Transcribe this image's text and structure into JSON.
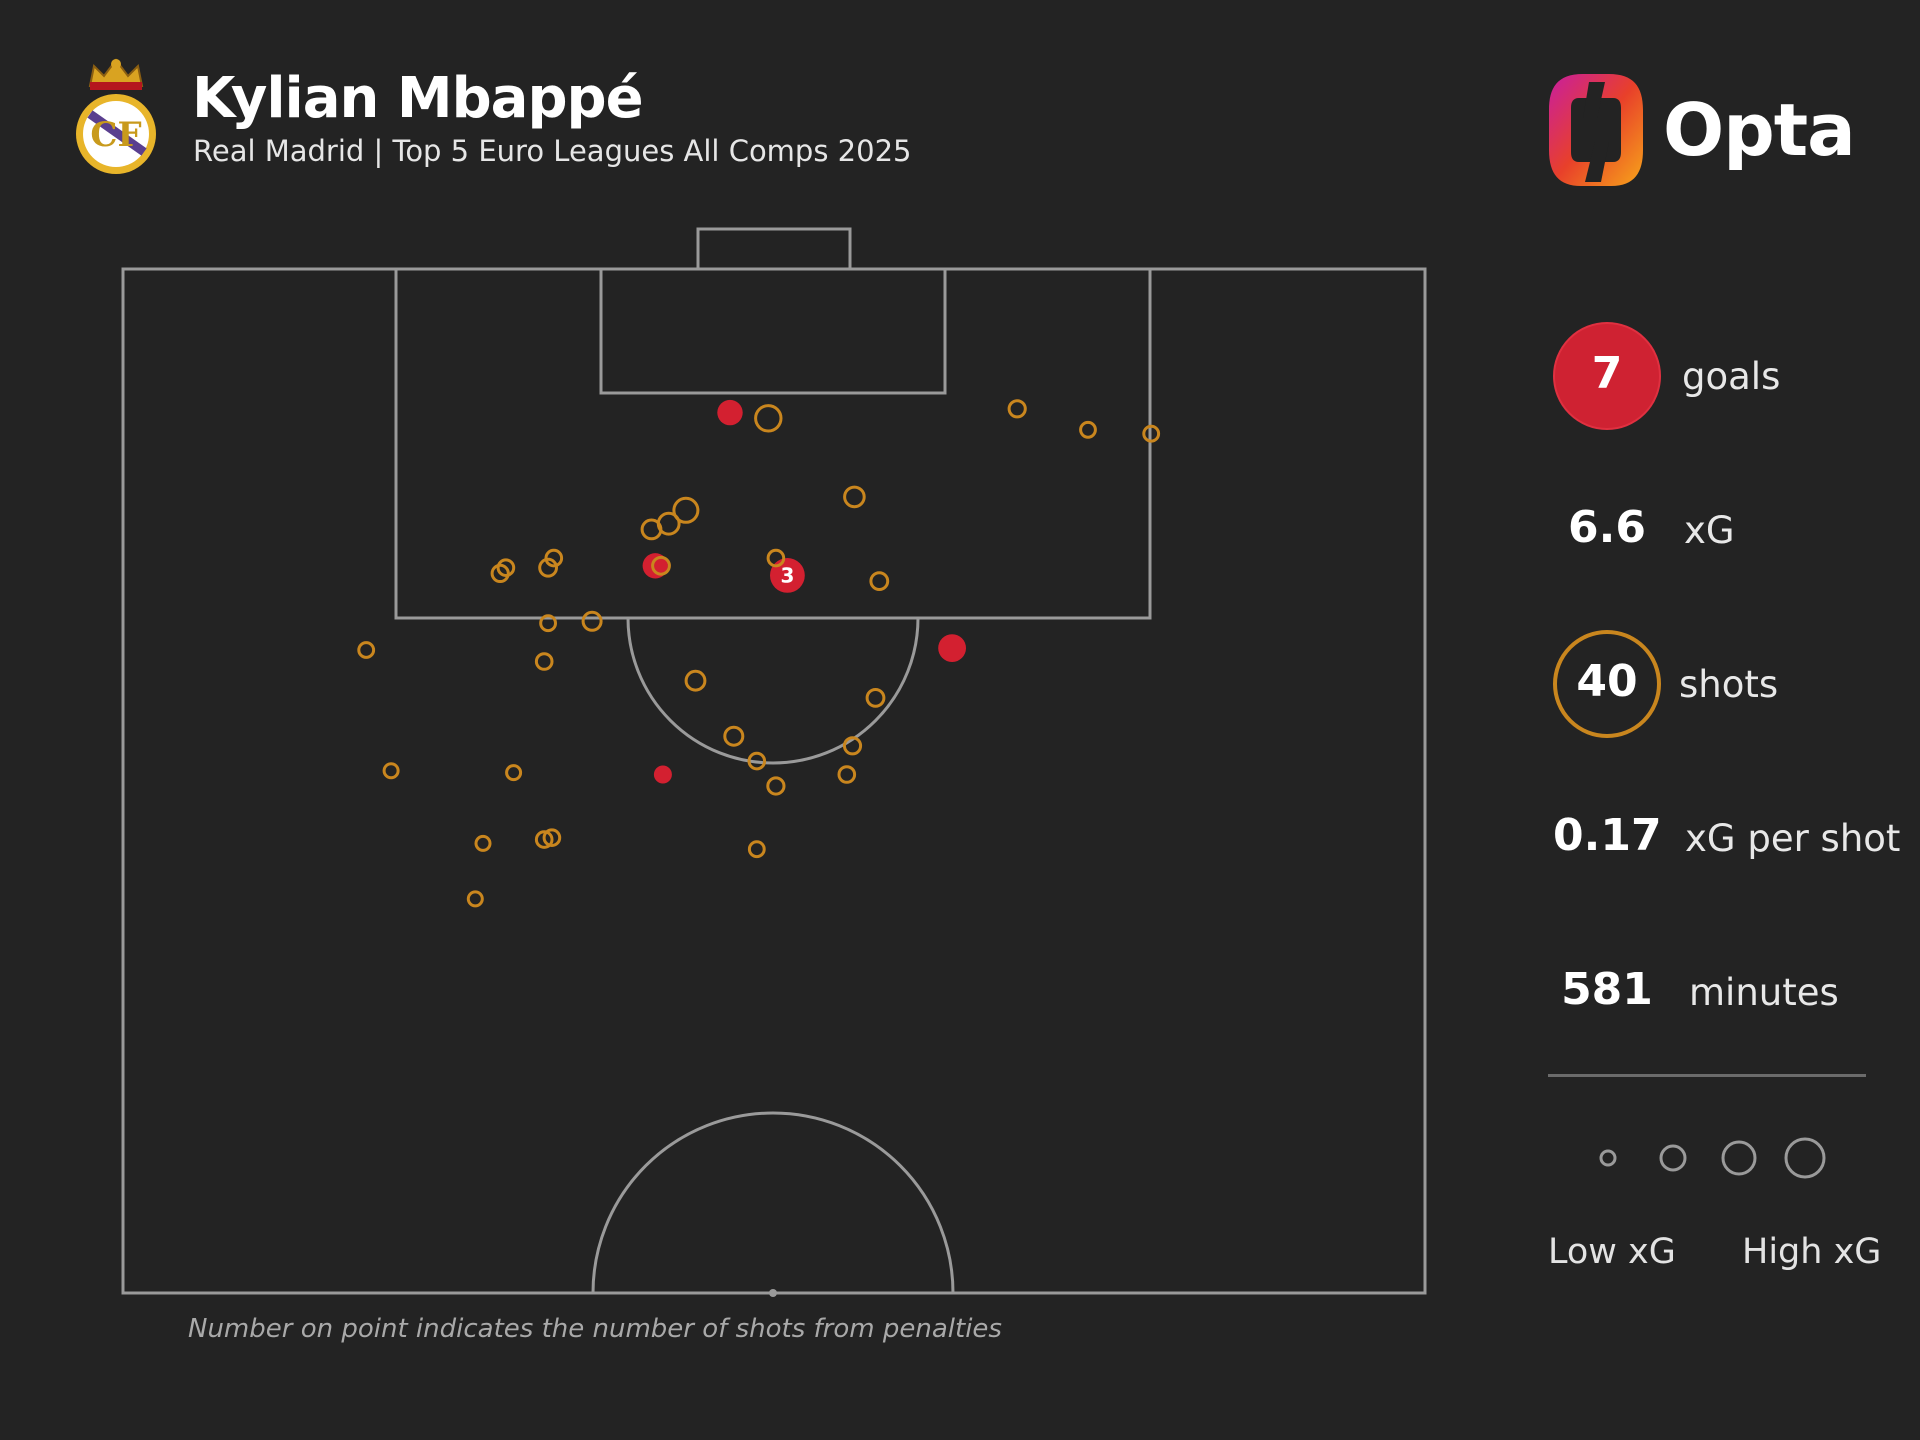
{
  "header": {
    "player_name": "Kylian Mbappé",
    "subtitle": "Real Madrid | Top 5 Euro Leagues All Comps 2025",
    "brand": "Opta"
  },
  "stats": [
    {
      "key": "goals",
      "value": "7",
      "label": "goals"
    },
    {
      "key": "xg",
      "value": "6.6",
      "label": "xG"
    },
    {
      "key": "shots",
      "value": "40",
      "label": "shots"
    },
    {
      "key": "xg_per_shot",
      "value": "0.17",
      "label": "xG per shot"
    },
    {
      "key": "minutes",
      "value": "581",
      "label": "minutes"
    }
  ],
  "legend": {
    "low_label": "Low xG",
    "high_label": "High xG"
  },
  "footnote": "Number on point indicates the number of shots from penalties",
  "colors": {
    "background": "#232323",
    "goal": "#d32030",
    "shot": "#c9861e",
    "pitch_lines": "#9a9a9a"
  },
  "icons": {
    "club_crest": "real-madrid-crest",
    "brand_logo": "opta-logo"
  },
  "chart_data": {
    "type": "scatter",
    "title": "Kylian Mbappé",
    "subtitle": "Real Madrid | Top 5 Euro Leagues All Comps 2025",
    "pitch": {
      "length": 105,
      "width": 68,
      "view": "attacking half, goal at top"
    },
    "x_axis": "pitch width (m, 0 = left touchline)",
    "y_axis": "distance from goal line (m)",
    "size_encoding": "xG",
    "shots": [
      {
        "x": 31.7,
        "y": 7.5,
        "xg": 0.3,
        "outcome": "goal"
      },
      {
        "x": 33.7,
        "y": 7.8,
        "xg": 0.3,
        "outcome": "shot"
      },
      {
        "x": 34.7,
        "y": 16.0,
        "xg": 0.79,
        "outcome": "goal",
        "label": "3"
      },
      {
        "x": 27.8,
        "y": 15.5,
        "xg": 0.3,
        "outcome": "goal"
      },
      {
        "x": 43.3,
        "y": 19.8,
        "xg": 0.4,
        "outcome": "goal"
      },
      {
        "x": 28.2,
        "y": 26.4,
        "xg": 0.08,
        "outcome": "goal"
      },
      {
        "x": 46.7,
        "y": 7.3,
        "xg": 0.05,
        "outcome": "shot"
      },
      {
        "x": 50.4,
        "y": 8.4,
        "xg": 0.03,
        "outcome": "shot"
      },
      {
        "x": 53.7,
        "y": 8.6,
        "xg": 0.03,
        "outcome": "shot"
      },
      {
        "x": 29.4,
        "y": 12.6,
        "xg": 0.25,
        "outcome": "shot"
      },
      {
        "x": 28.5,
        "y": 13.3,
        "xg": 0.15,
        "outcome": "shot"
      },
      {
        "x": 27.6,
        "y": 13.6,
        "xg": 0.1,
        "outcome": "shot"
      },
      {
        "x": 38.2,
        "y": 11.9,
        "xg": 0.12,
        "outcome": "shot"
      },
      {
        "x": 34.1,
        "y": 15.1,
        "xg": 0.04,
        "outcome": "shot"
      },
      {
        "x": 28.1,
        "y": 15.5,
        "xg": 0.06,
        "outcome": "shot"
      },
      {
        "x": 20.0,
        "y": 15.6,
        "xg": 0.04,
        "outcome": "shot"
      },
      {
        "x": 19.7,
        "y": 15.9,
        "xg": 0.05,
        "outcome": "shot"
      },
      {
        "x": 22.5,
        "y": 15.1,
        "xg": 0.04,
        "outcome": "shot"
      },
      {
        "x": 22.2,
        "y": 15.6,
        "xg": 0.06,
        "outcome": "shot"
      },
      {
        "x": 39.5,
        "y": 16.3,
        "xg": 0.06,
        "outcome": "shot"
      },
      {
        "x": 24.5,
        "y": 18.4,
        "xg": 0.08,
        "outcome": "shot"
      },
      {
        "x": 22.2,
        "y": 18.5,
        "xg": 0.03,
        "outcome": "shot"
      },
      {
        "x": 12.7,
        "y": 19.9,
        "xg": 0.03,
        "outcome": "shot"
      },
      {
        "x": 22.0,
        "y": 20.5,
        "xg": 0.04,
        "outcome": "shot"
      },
      {
        "x": 29.9,
        "y": 21.5,
        "xg": 0.1,
        "outcome": "shot"
      },
      {
        "x": 39.3,
        "y": 22.4,
        "xg": 0.06,
        "outcome": "shot"
      },
      {
        "x": 31.9,
        "y": 24.4,
        "xg": 0.08,
        "outcome": "shot"
      },
      {
        "x": 38.1,
        "y": 24.9,
        "xg": 0.05,
        "outcome": "shot"
      },
      {
        "x": 33.1,
        "y": 25.7,
        "xg": 0.04,
        "outcome": "shot"
      },
      {
        "x": 37.8,
        "y": 26.4,
        "xg": 0.04,
        "outcome": "shot"
      },
      {
        "x": 34.1,
        "y": 27.0,
        "xg": 0.05,
        "outcome": "shot"
      },
      {
        "x": 14.0,
        "y": 26.2,
        "xg": 0.02,
        "outcome": "shot"
      },
      {
        "x": 20.4,
        "y": 26.3,
        "xg": 0.02,
        "outcome": "shot"
      },
      {
        "x": 22.4,
        "y": 29.7,
        "xg": 0.04,
        "outcome": "shot"
      },
      {
        "x": 22.0,
        "y": 29.8,
        "xg": 0.04,
        "outcome": "shot"
      },
      {
        "x": 18.8,
        "y": 30.0,
        "xg": 0.02,
        "outcome": "shot"
      },
      {
        "x": 33.1,
        "y": 30.3,
        "xg": 0.03,
        "outcome": "shot"
      },
      {
        "x": 18.4,
        "y": 32.9,
        "xg": 0.02,
        "outcome": "shot"
      }
    ]
  }
}
